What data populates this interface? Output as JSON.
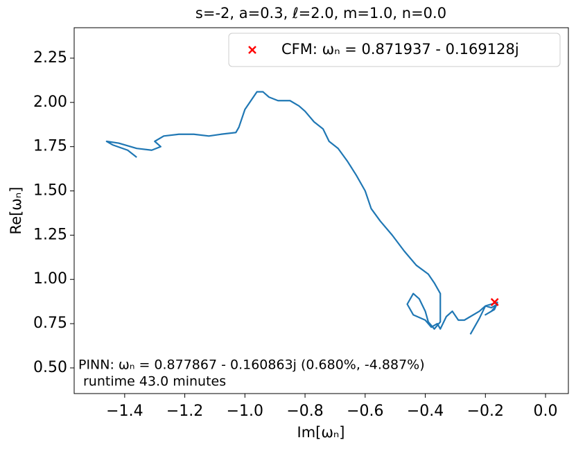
{
  "chart_data": {
    "type": "line",
    "title": "s=-2, a=0.3, ℓ=2.0, m=1.0, n=0.0",
    "x_label": "Im[ωₙ]",
    "y_label": "Re[ωₙ]",
    "annotations": [
      "PINN: ωₙ = 0.877867 - 0.160863j (0.680%, -4.887%)",
      "runtime 43.0 minutes"
    ],
    "legend_loc": "upper right",
    "xlim": [
      -1.568,
      0.076
    ],
    "ylim": [
      0.355,
      2.422
    ],
    "xticks": [
      {
        "value": -1.4,
        "label": "−1.4"
      },
      {
        "value": -1.2,
        "label": "−1.2"
      },
      {
        "value": -1.0,
        "label": "−1.0"
      },
      {
        "value": -0.8,
        "label": "−0.8"
      },
      {
        "value": -0.6,
        "label": "−0.6"
      },
      {
        "value": -0.4,
        "label": "−0.4"
      },
      {
        "value": -0.2,
        "label": "−0.2"
      },
      {
        "value": 0,
        "label": "0.0"
      }
    ],
    "yticks": [
      {
        "value": 0.5,
        "label": "0.50"
      },
      {
        "value": 0.75,
        "label": "0.75"
      },
      {
        "value": 1,
        "label": "1.00"
      },
      {
        "value": 1.25,
        "label": "1.25"
      },
      {
        "value": 1.5,
        "label": "1.50"
      },
      {
        "value": 1.75,
        "label": "1.75"
      },
      {
        "value": 2,
        "label": "2.00"
      },
      {
        "value": 2.25,
        "label": "2.25"
      }
    ],
    "series": [
      {
        "type": "line",
        "color": "#1f77b4",
        "x": [
          -1.36,
          -1.39,
          -1.44,
          -1.46,
          -1.42,
          -1.36,
          -1.31,
          -1.28,
          -1.3,
          -1.27,
          -1.22,
          -1.17,
          -1.12,
          -1.08,
          -1.03,
          -1.02,
          -1.0,
          -0.98,
          -0.96,
          -0.94,
          -0.92,
          -0.89,
          -0.85,
          -0.82,
          -0.8,
          -0.77,
          -0.74,
          -0.72,
          -0.69,
          -0.66,
          -0.63,
          -0.6,
          -0.58,
          -0.55,
          -0.51,
          -0.47,
          -0.43,
          -0.39,
          -0.37,
          -0.35,
          -0.35,
          -0.35,
          -0.37,
          -0.39,
          -0.4,
          -0.42,
          -0.44,
          -0.46,
          -0.44,
          -0.4,
          -0.38,
          -0.36,
          -0.35,
          -0.33,
          -0.31,
          -0.29,
          -0.27,
          -0.25,
          -0.22,
          -0.2,
          -0.18,
          -0.16,
          -0.18,
          -0.2,
          -0.17,
          -0.16,
          -0.2,
          -0.22,
          -0.25
        ],
        "values": [
          1.69,
          1.73,
          1.76,
          1.78,
          1.77,
          1.74,
          1.73,
          1.75,
          1.78,
          1.81,
          1.82,
          1.82,
          1.81,
          1.82,
          1.83,
          1.86,
          1.96,
          2.01,
          2.06,
          2.06,
          2.03,
          2.01,
          2.01,
          1.98,
          1.95,
          1.89,
          1.85,
          1.78,
          1.74,
          1.67,
          1.59,
          1.5,
          1.4,
          1.33,
          1.25,
          1.16,
          1.08,
          1.03,
          0.98,
          0.92,
          0.83,
          0.76,
          0.72,
          0.76,
          0.82,
          0.89,
          0.92,
          0.86,
          0.8,
          0.77,
          0.73,
          0.75,
          0.72,
          0.79,
          0.82,
          0.77,
          0.77,
          0.79,
          0.82,
          0.85,
          0.84,
          0.86,
          0.82,
          0.8,
          0.83,
          0.87,
          0.85,
          0.78,
          0.69
        ]
      },
      {
        "type": "scatter",
        "name": "CFM: ωₙ = 0.871937 - 0.169128j",
        "color": "#ff0000",
        "marker": "x",
        "x": [
          -0.169128
        ],
        "values": [
          0.871937
        ]
      }
    ]
  }
}
